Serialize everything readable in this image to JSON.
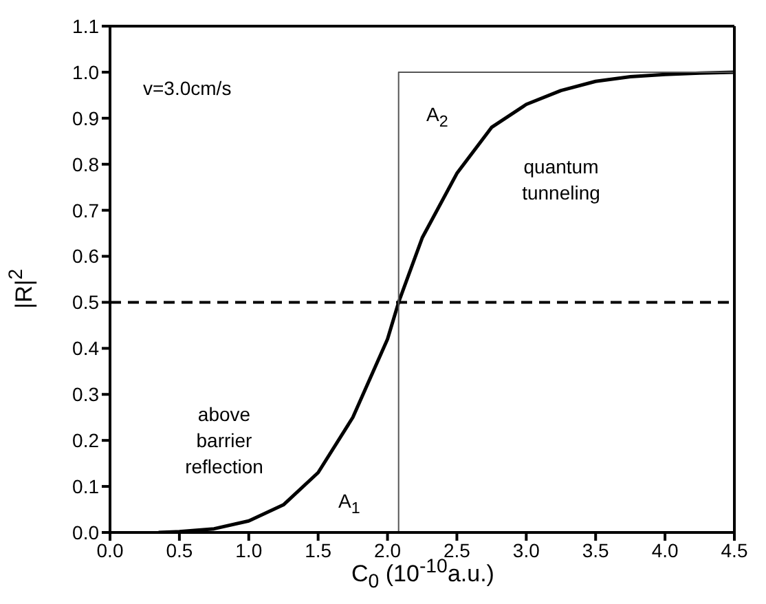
{
  "chart_data": {
    "type": "line",
    "xlabel": "C$_{0}$ (10$^{-10}$a.u.)",
    "ylabel": "|R|$^{2}$",
    "xlim": [
      0,
      4.5
    ],
    "ylim": [
      0,
      1.1
    ],
    "xticks": [
      {
        "value": 0,
        "label": "0.0"
      },
      {
        "value": 0.5,
        "label": "0.5"
      },
      {
        "value": 1,
        "label": "1.0"
      },
      {
        "value": 1.5,
        "label": "1.5"
      },
      {
        "value": 2,
        "label": "2.0"
      },
      {
        "value": 2.5,
        "label": "2.5"
      },
      {
        "value": 3,
        "label": "3.0"
      },
      {
        "value": 3.5,
        "label": "3.5"
      },
      {
        "value": 4,
        "label": "4.0"
      },
      {
        "value": 4.5,
        "label": "4.5"
      }
    ],
    "yticks": [
      {
        "value": 0,
        "label": "0.0"
      },
      {
        "value": 0.1,
        "label": "0.1"
      },
      {
        "value": 0.2,
        "label": "0.2"
      },
      {
        "value": 0.3,
        "label": "0.3"
      },
      {
        "value": 0.4,
        "label": "0.4"
      },
      {
        "value": 0.5,
        "label": "0.5"
      },
      {
        "value": 0.6,
        "label": "0.6"
      },
      {
        "value": 0.7,
        "label": "0.7"
      },
      {
        "value": 0.8,
        "label": "0.8"
      },
      {
        "value": 0.9,
        "label": "0.9"
      },
      {
        "value": 1,
        "label": "1.0"
      },
      {
        "value": 1.1,
        "label": "1.1"
      }
    ],
    "series": [
      {
        "color": "#000000",
        "x": [
          0.35,
          0.5,
          0.75,
          1.0,
          1.25,
          1.5,
          1.75,
          2.0,
          2.08,
          2.25,
          2.5,
          2.75,
          3.0,
          3.25,
          3.5,
          3.75,
          4.0,
          4.25,
          4.5
        ],
        "values": [
          0.0,
          0.002,
          0.008,
          0.025,
          0.06,
          0.13,
          0.25,
          0.42,
          0.5,
          0.64,
          0.78,
          0.88,
          0.93,
          0.96,
          0.98,
          0.99,
          0.995,
          0.998,
          1.0
        ]
      },
      {
        "color": "#555555",
        "x": [
          2.08,
          2.08,
          4.5
        ],
        "values": [
          0,
          1,
          1
        ]
      }
    ],
    "ref_lines": [
      {
        "axis": "y",
        "value": 0.5,
        "color": "#000000",
        "line_style": "dashed"
      }
    ],
    "annotations": [
      "v=3.0cm/s",
      "A$_{2}$",
      "quantum\ntunneling",
      "above\nbarrier\nreflection",
      "A$_{1}$"
    ]
  }
}
